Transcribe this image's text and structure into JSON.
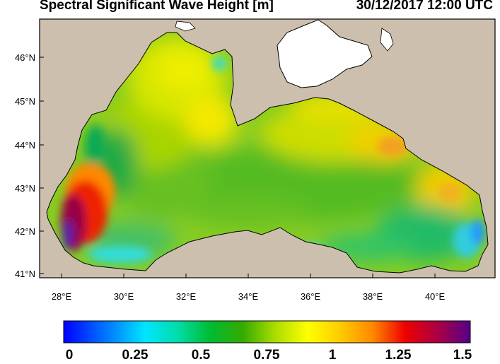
{
  "title": "Spectral Significant Wave Height [m]",
  "timestamp": "30/12/2017 12:00 UTC",
  "colors": {
    "land": "#cdbfad",
    "coast": "#000000",
    "frame": "#000000"
  },
  "map": {
    "region": "Black Sea",
    "lon_range": [
      27.4,
      41.8
    ],
    "lat_range": [
      40.9,
      46.85
    ],
    "x_ticks": [
      "28°E",
      "30°E",
      "32°E",
      "34°E",
      "36°E",
      "38°E",
      "40°E"
    ],
    "y_ticks": [
      "46°N",
      "45°N",
      "44°N",
      "43°N",
      "42°N",
      "41°N"
    ]
  },
  "colorbar": {
    "labels": [
      "0",
      "0.25",
      "0.5",
      "0.75",
      "1",
      "1.25",
      "1.5"
    ],
    "range": [
      0,
      1.5
    ],
    "colors": [
      "#0000ff",
      "#00e5ff",
      "#00bb33",
      "#ffff00",
      "#ff8800",
      "#ee0000",
      "#550088"
    ]
  }
}
